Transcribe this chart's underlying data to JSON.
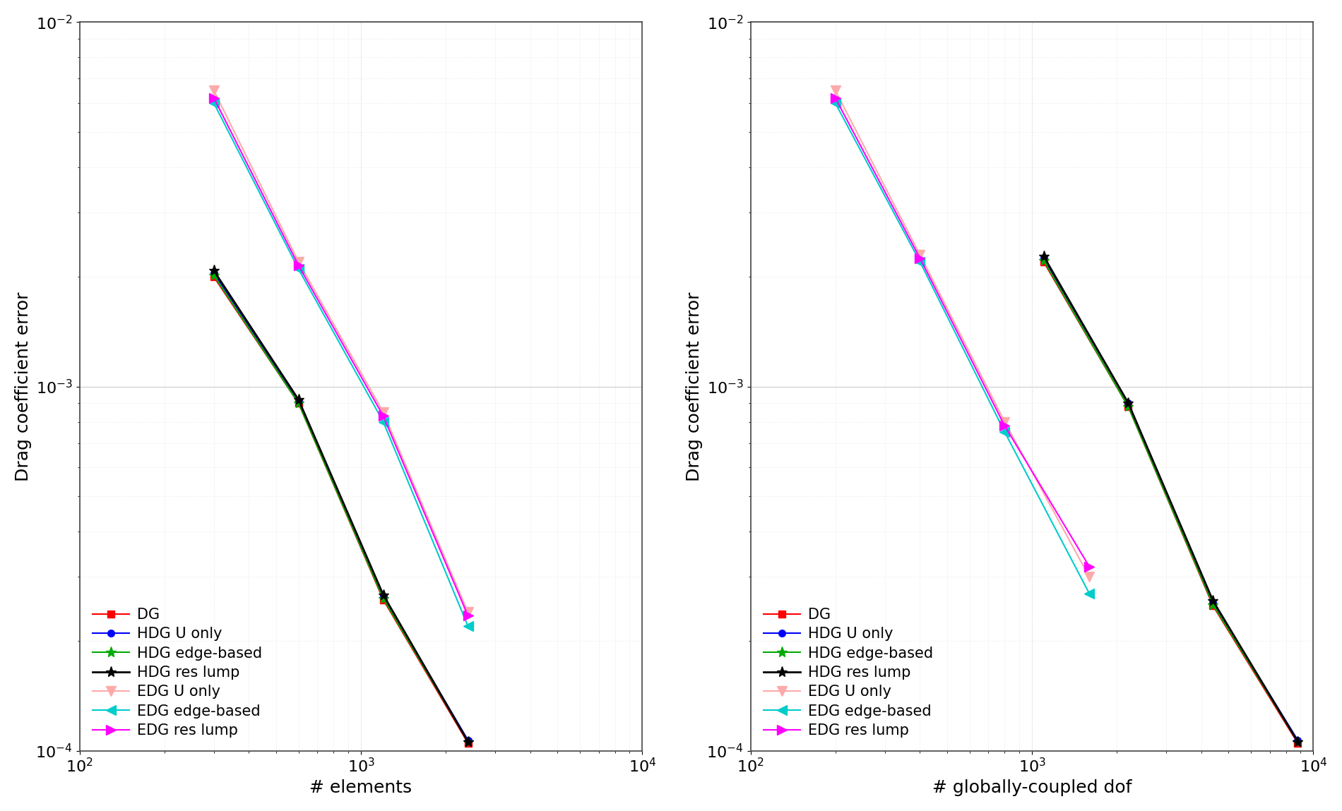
{
  "plot1": {
    "xlabel": "# elements",
    "ylabel": "Drag coefficient error",
    "xlim": [
      100.0,
      10000.0
    ],
    "ylim": [
      0.0001,
      0.01
    ],
    "series_order": [
      "DG",
      "HDG U only",
      "HDG edge-based",
      "HDG res lump",
      "EDG U only",
      "EDG edge-based",
      "EDG res lump"
    ],
    "series": {
      "DG": {
        "x": [
          300,
          600,
          1200,
          2400
        ],
        "y": [
          0.002,
          0.0009,
          0.00026,
          0.000105
        ],
        "color": "#FF0000",
        "marker": "s",
        "lw": 1.5,
        "ms": 7,
        "zorder": 5
      },
      "HDG U only": {
        "x": [
          300,
          600,
          1200,
          2400
        ],
        "y": [
          0.00205,
          0.00091,
          0.000265,
          0.000107
        ],
        "color": "#0000FF",
        "marker": "o",
        "lw": 1.5,
        "ms": 7,
        "zorder": 5
      },
      "HDG edge-based": {
        "x": [
          300,
          600,
          1200,
          2400
        ],
        "y": [
          0.00202,
          0.0009,
          0.000262,
          0.000106
        ],
        "color": "#00AA00",
        "marker": "*",
        "lw": 1.5,
        "ms": 11,
        "zorder": 5
      },
      "HDG res lump": {
        "x": [
          300,
          600,
          1200,
          2400
        ],
        "y": [
          0.00208,
          0.00092,
          0.000268,
          0.000106
        ],
        "color": "#000000",
        "marker": "*",
        "lw": 2.0,
        "ms": 11,
        "zorder": 5
      },
      "EDG U only": {
        "x": [
          300,
          600,
          1200,
          2400
        ],
        "y": [
          0.0065,
          0.0022,
          0.00085,
          0.00024
        ],
        "color": "#FFAAAA",
        "marker": "v",
        "lw": 1.5,
        "ms": 10,
        "zorder": 4
      },
      "EDG edge-based": {
        "x": [
          300,
          600,
          1200,
          2400
        ],
        "y": [
          0.006,
          0.0021,
          0.0008,
          0.00022
        ],
        "color": "#00CCCC",
        "marker": "<",
        "lw": 1.5,
        "ms": 10,
        "zorder": 4
      },
      "EDG res lump": {
        "x": [
          300,
          600,
          1200,
          2400
        ],
        "y": [
          0.0062,
          0.00215,
          0.00083,
          0.000235
        ],
        "color": "#FF00FF",
        "marker": ">",
        "lw": 1.5,
        "ms": 10,
        "zorder": 4
      }
    }
  },
  "plot2": {
    "xlabel": "# globally-coupled dof",
    "ylabel": "Drag coefficient error",
    "xlim": [
      100.0,
      10000.0
    ],
    "ylim": [
      0.0001,
      0.01
    ],
    "series_order": [
      "DG",
      "HDG U only",
      "HDG edge-based",
      "HDG res lump",
      "EDG U only",
      "EDG edge-based",
      "EDG res lump"
    ],
    "series": {
      "DG": {
        "x": [
          1100,
          2200,
          4400,
          8800
        ],
        "y": [
          0.0022,
          0.00088,
          0.00025,
          0.000105
        ],
        "color": "#FF0000",
        "marker": "s",
        "lw": 1.5,
        "ms": 7,
        "zorder": 5
      },
      "HDG U only": {
        "x": [
          1100,
          2200,
          4400,
          8800
        ],
        "y": [
          0.00225,
          0.0009,
          0.000255,
          0.000107
        ],
        "color": "#0000FF",
        "marker": "o",
        "lw": 1.5,
        "ms": 7,
        "zorder": 5
      },
      "HDG edge-based": {
        "x": [
          1100,
          2200,
          4400,
          8800
        ],
        "y": [
          0.00222,
          0.00088,
          0.000252,
          0.000106
        ],
        "color": "#00AA00",
        "marker": "*",
        "lw": 1.5,
        "ms": 11,
        "zorder": 5
      },
      "HDG res lump": {
        "x": [
          1100,
          2200,
          4400,
          8800
        ],
        "y": [
          0.00228,
          0.0009,
          0.000258,
          0.000106
        ],
        "color": "#000000",
        "marker": "*",
        "lw": 2.0,
        "ms": 11,
        "zorder": 5
      },
      "EDG U only": {
        "x": [
          200,
          400,
          800,
          1600
        ],
        "y": [
          0.0065,
          0.0023,
          0.0008,
          0.0003
        ],
        "color": "#FFAAAA",
        "marker": "v",
        "lw": 1.5,
        "ms": 10,
        "zorder": 4
      },
      "EDG edge-based": {
        "x": [
          200,
          400,
          800,
          1600
        ],
        "y": [
          0.006,
          0.0022,
          0.00075,
          0.00027
        ],
        "color": "#00CCCC",
        "marker": "<",
        "lw": 1.5,
        "ms": 10,
        "zorder": 4
      },
      "EDG res lump": {
        "x": [
          200,
          400,
          800,
          1600
        ],
        "y": [
          0.0062,
          0.00225,
          0.00078,
          0.00032
        ],
        "color": "#FF00FF",
        "marker": ">",
        "lw": 1.5,
        "ms": 10,
        "zorder": 4
      }
    }
  },
  "legend_loc": "lower left",
  "background_color": "#FFFFFF",
  "grid_major_color": "#CCCCCC",
  "grid_minor_color": "#DDDDDD",
  "fontsize": 16,
  "label_fontsize": 18,
  "tick_fontsize": 16
}
